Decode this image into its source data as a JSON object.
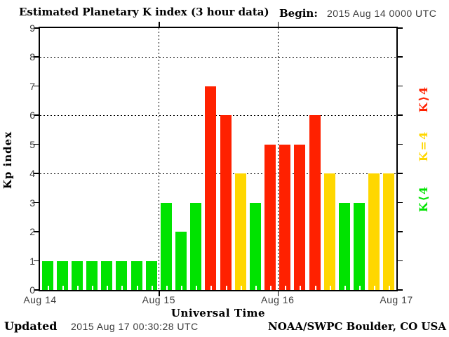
{
  "chart_data": {
    "type": "bar",
    "title": "Estimated Planetary K index (3 hour data)",
    "begin_label": "Begin:",
    "begin_value": "2015 Aug 14 0000 UTC",
    "xlabel": "Universal Time",
    "ylabel": "Kp index",
    "ylim": [
      0,
      9
    ],
    "ytick_labels": [
      "0",
      "1",
      "2",
      "3",
      "4",
      "5",
      "6",
      "7",
      "8",
      "9"
    ],
    "xtick_labels": [
      "Aug 14",
      "Aug 15",
      "Aug 16",
      "Aug 17"
    ],
    "grid_y_values": [
      4,
      6,
      8
    ],
    "bars_per_day": 8,
    "days": [
      {
        "date": "Aug 14",
        "values": [
          1,
          1,
          1,
          1,
          1,
          1,
          1,
          1
        ]
      },
      {
        "date": "Aug 15",
        "values": [
          3,
          2,
          3,
          7,
          6,
          4,
          3,
          5
        ]
      },
      {
        "date": "Aug 16",
        "values": [
          5,
          5,
          6,
          4,
          3,
          3,
          4,
          4
        ]
      }
    ],
    "color_rule": {
      "below_4": "green",
      "equal_4": "yellow",
      "above_4": "red"
    },
    "colors": {
      "green": "#00e300",
      "yellow": "#ffd700",
      "red": "#ff2100"
    },
    "legend": [
      {
        "label": "K⟩4",
        "color": "#ff2100"
      },
      {
        "label": "K=4",
        "color": "#ffd700"
      },
      {
        "label": "K⟨4",
        "color": "#00e300"
      }
    ]
  },
  "footer": {
    "updated_label": "Updated",
    "updated_value": "2015 Aug 17 00:30:28 UTC",
    "credit": "NOAA/SWPC Boulder, CO USA"
  }
}
